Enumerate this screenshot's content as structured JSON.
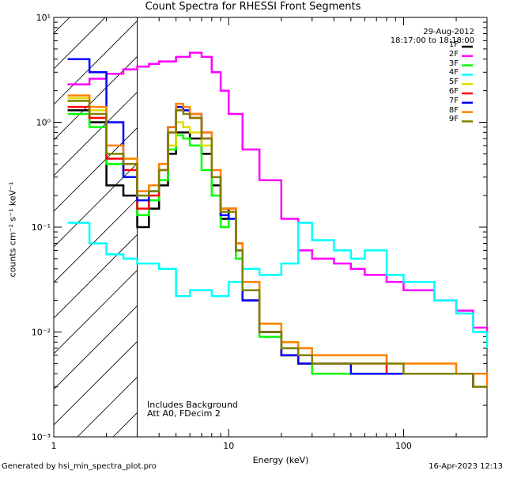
{
  "chart_data": {
    "type": "line",
    "title": "Count Spectra for RHESSI Front Segments",
    "xlabel": "Energy (keV)",
    "ylabel": "counts cm⁻² s⁻¹ keV⁻¹",
    "x_scale": "log",
    "y_scale": "log",
    "xlim": [
      1,
      300
    ],
    "ylim": [
      0.001,
      10
    ],
    "x_ticks": [
      "1",
      "10",
      "100"
    ],
    "y_ticks": [
      "10⁻³",
      "10⁻²",
      "10⁻¹",
      "10⁰",
      "10¹"
    ],
    "legend": {
      "placement": "top-right",
      "date": "29-Aug-2012",
      "time": "18:17:00 to 18:18:00"
    },
    "excluded_region_below_keV": 3,
    "annotations": [
      "Includes Background",
      "Att A0, FDecim 2"
    ],
    "series": [
      {
        "name": "1F",
        "color": "#000000",
        "x": [
          1.2,
          1.6,
          2.0,
          2.5,
          3.0,
          3.5,
          4.0,
          4.5,
          5.0,
          5.5,
          6.0,
          7.0,
          8.0,
          9.0,
          10,
          11,
          12,
          15,
          20,
          25,
          30,
          40,
          50,
          60,
          80,
          100,
          150,
          200,
          250,
          300
        ],
        "y": [
          1.3,
          1.0,
          0.25,
          0.2,
          0.1,
          0.15,
          0.25,
          0.5,
          0.8,
          0.8,
          0.7,
          0.5,
          0.25,
          0.12,
          0.15,
          0.06,
          0.02,
          0.01,
          0.006,
          0.005,
          0.004,
          0.004,
          0.004,
          0.004,
          0.004,
          0.004,
          0.004,
          0.004,
          0.003,
          0.003
        ]
      },
      {
        "name": "2F",
        "color": "#ff00ff",
        "x": [
          1.2,
          1.6,
          2.0,
          2.5,
          3.0,
          3.5,
          4.0,
          5.0,
          6.0,
          7.0,
          8.0,
          9.0,
          10,
          12,
          15,
          20,
          25,
          30,
          40,
          50,
          60,
          80,
          100,
          150,
          200,
          250,
          300
        ],
        "y": [
          2.3,
          2.6,
          2.9,
          3.2,
          3.4,
          3.6,
          3.8,
          4.2,
          4.6,
          4.2,
          3.0,
          2.0,
          1.2,
          0.55,
          0.28,
          0.12,
          0.06,
          0.05,
          0.045,
          0.04,
          0.035,
          0.03,
          0.025,
          0.02,
          0.016,
          0.011,
          0.009
        ]
      },
      {
        "name": "3F",
        "color": "#00ff00",
        "x": [
          1.2,
          1.6,
          2.0,
          2.5,
          3.0,
          3.5,
          4.0,
          4.5,
          5.0,
          5.5,
          6.0,
          7.0,
          8.0,
          9.0,
          10,
          11,
          12,
          15,
          20,
          25,
          30,
          40,
          50,
          60,
          80,
          100,
          150,
          200,
          250,
          300
        ],
        "y": [
          1.2,
          0.9,
          0.4,
          0.3,
          0.13,
          0.18,
          0.28,
          0.55,
          0.75,
          0.7,
          0.6,
          0.35,
          0.2,
          0.1,
          0.12,
          0.05,
          0.02,
          0.009,
          0.006,
          0.005,
          0.004,
          0.004,
          0.004,
          0.004,
          0.004,
          0.004,
          0.004,
          0.004,
          0.003,
          0.003
        ]
      },
      {
        "name": "4F",
        "color": "#00ffff",
        "x": [
          1.2,
          1.6,
          2.0,
          2.5,
          3.0,
          4.0,
          5.0,
          6.0,
          8.0,
          10,
          12,
          15,
          20,
          25,
          30,
          40,
          50,
          60,
          80,
          100,
          150,
          200,
          250,
          300
        ],
        "y": [
          0.11,
          0.07,
          0.055,
          0.05,
          0.045,
          0.04,
          0.022,
          0.025,
          0.022,
          0.03,
          0.04,
          0.035,
          0.045,
          0.11,
          0.075,
          0.06,
          0.05,
          0.06,
          0.035,
          0.03,
          0.02,
          0.015,
          0.01,
          0.007
        ]
      },
      {
        "name": "5F",
        "color": "#dddd00",
        "x": [
          1.2,
          1.6,
          2.0,
          2.5,
          3.0,
          3.5,
          4.0,
          4.5,
          5.0,
          5.5,
          6.0,
          7.0,
          8.0,
          9.0,
          10,
          11,
          12,
          15,
          20,
          25,
          30,
          40,
          50,
          60,
          80,
          100,
          150,
          200,
          250,
          300
        ],
        "y": [
          1.7,
          1.3,
          0.5,
          0.45,
          0.2,
          0.25,
          0.35,
          0.6,
          1.0,
          0.9,
          0.8,
          0.6,
          0.3,
          0.15,
          0.15,
          0.07,
          0.025,
          0.012,
          0.008,
          0.007,
          0.006,
          0.006,
          0.006,
          0.006,
          0.005,
          0.005,
          0.005,
          0.004,
          0.003,
          0.003
        ]
      },
      {
        "name": "6F",
        "color": "#ff0000",
        "x": [
          1.2,
          1.6,
          2.0,
          2.5,
          3.0,
          3.5,
          4.0,
          4.5,
          5.0,
          5.5,
          6.0,
          7.0,
          8.0,
          9.0,
          10,
          11,
          12,
          15,
          20,
          25,
          30,
          40,
          50,
          60,
          80,
          100,
          150,
          200,
          250,
          300
        ],
        "y": [
          1.4,
          1.1,
          0.45,
          0.35,
          0.15,
          0.2,
          0.35,
          0.8,
          1.3,
          1.3,
          1.1,
          0.7,
          0.3,
          0.15,
          0.15,
          0.07,
          0.02,
          0.01,
          0.006,
          0.005,
          0.005,
          0.005,
          0.005,
          0.005,
          0.004,
          0.004,
          0.004,
          0.004,
          0.003,
          0.003
        ]
      },
      {
        "name": "7F",
        "color": "#0000ff",
        "x": [
          1.2,
          1.6,
          2.0,
          2.5,
          3.0,
          3.5,
          4.0,
          4.5,
          5.0,
          5.5,
          6.0,
          7.0,
          8.0,
          9.0,
          10,
          11,
          12,
          15,
          20,
          25,
          30,
          40,
          50,
          60,
          80,
          100,
          150,
          200,
          250,
          300
        ],
        "y": [
          4.0,
          3.0,
          1.0,
          0.3,
          0.18,
          0.22,
          0.4,
          0.9,
          1.4,
          1.3,
          1.2,
          0.8,
          0.3,
          0.13,
          0.12,
          0.06,
          0.02,
          0.01,
          0.006,
          0.005,
          0.005,
          0.005,
          0.004,
          0.004,
          0.004,
          0.004,
          0.004,
          0.004,
          0.003,
          0.003
        ]
      },
      {
        "name": "8F",
        "color": "#ff8000",
        "x": [
          1.2,
          1.6,
          2.0,
          2.5,
          3.0,
          3.5,
          4.0,
          4.5,
          5.0,
          5.5,
          6.0,
          7.0,
          8.0,
          9.0,
          10,
          11,
          12,
          15,
          20,
          25,
          30,
          40,
          50,
          60,
          80,
          100,
          150,
          200,
          250,
          300
        ],
        "y": [
          1.8,
          1.4,
          0.6,
          0.45,
          0.22,
          0.25,
          0.4,
          0.9,
          1.5,
          1.4,
          1.2,
          0.8,
          0.35,
          0.15,
          0.15,
          0.07,
          0.03,
          0.012,
          0.008,
          0.007,
          0.006,
          0.006,
          0.006,
          0.006,
          0.005,
          0.005,
          0.005,
          0.004,
          0.004,
          0.003
        ]
      },
      {
        "name": "9F",
        "color": "#808000",
        "x": [
          1.2,
          1.6,
          2.0,
          2.5,
          3.0,
          3.5,
          4.0,
          4.5,
          5.0,
          5.5,
          6.0,
          7.0,
          8.0,
          9.0,
          10,
          11,
          12,
          15,
          20,
          25,
          30,
          40,
          50,
          60,
          80,
          100,
          150,
          200,
          250,
          300
        ],
        "y": [
          1.6,
          1.2,
          0.5,
          0.4,
          0.2,
          0.22,
          0.35,
          0.8,
          1.3,
          1.2,
          1.1,
          0.7,
          0.3,
          0.14,
          0.14,
          0.06,
          0.025,
          0.01,
          0.007,
          0.006,
          0.005,
          0.005,
          0.005,
          0.005,
          0.005,
          0.004,
          0.004,
          0.004,
          0.003,
          0.003
        ]
      }
    ]
  },
  "footer": {
    "generated_by": "Generated by hsi_min_spectra_plot.pro",
    "timestamp": "16-Apr-2023 12:13"
  }
}
